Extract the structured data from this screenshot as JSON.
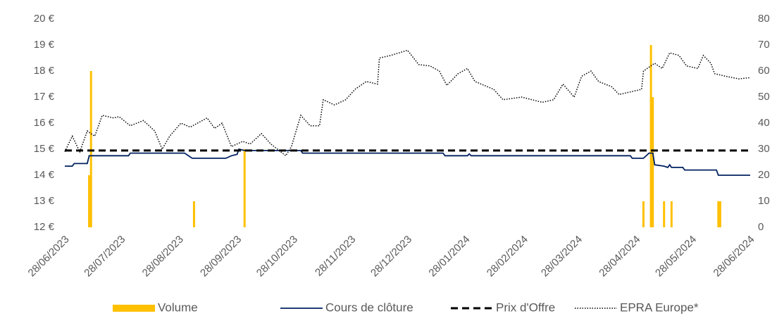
{
  "chart_data": {
    "type": "combo",
    "xlim": [
      "28/06/2023",
      "28/06/2024"
    ],
    "xticks": [
      "28/06/2023",
      "28/07/2023",
      "28/08/2023",
      "28/09/2023",
      "28/10/2023",
      "28/11/2023",
      "28/12/2023",
      "28/01/2024",
      "28/02/2024",
      "28/03/2024",
      "28/04/2024",
      "28/05/2024",
      "28/06/2024"
    ],
    "ylim": [
      12,
      20
    ],
    "yticks": [
      {
        "value": 12,
        "label": "12 €"
      },
      {
        "value": 13,
        "label": "13 €"
      },
      {
        "value": 14,
        "label": "14 €"
      },
      {
        "value": 15,
        "label": "15 €"
      },
      {
        "value": 16,
        "label": "16 €"
      },
      {
        "value": 17,
        "label": "17 €"
      },
      {
        "value": 18,
        "label": "18 €"
      },
      {
        "value": 19,
        "label": "19 €"
      },
      {
        "value": 20,
        "label": "20 €"
      }
    ],
    "y2lim": [
      0,
      80
    ],
    "y2ticks": [
      0,
      10,
      20,
      30,
      40,
      50,
      60,
      70,
      80
    ],
    "grid": false,
    "legend": "bottom",
    "series": [
      {
        "name": "Volume",
        "kind": "bar",
        "axis": "y2",
        "color": "#ffc000",
        "x": [
          "11/07/2023",
          "12/07/2023",
          "05/09/2023",
          "02/10/2023",
          "02/05/2024",
          "06/05/2024",
          "07/05/2024",
          "13/05/2024",
          "17/05/2024",
          "11/06/2024",
          "12/06/2024"
        ],
        "values": [
          20,
          60,
          10,
          30,
          10,
          70,
          50,
          10,
          10,
          10,
          10
        ]
      },
      {
        "name": "Cours de clôture",
        "kind": "line",
        "color": "#002060",
        "dash": "none",
        "x": [
          "28/06/2023",
          "02/07/2023",
          "03/07/2023",
          "10/07/2023",
          "11/07/2023",
          "01/08/2023",
          "02/08/2023",
          "31/08/2023",
          "04/09/2023",
          "22/09/2023",
          "25/09/2023",
          "28/09/2023",
          "29/09/2023",
          "02/10/2023",
          "01/11/2023",
          "02/11/2023",
          "16/01/2024",
          "17/01/2024",
          "29/01/2024",
          "30/01/2024",
          "31/01/2024",
          "25/04/2024",
          "26/04/2024",
          "02/05/2024",
          "05/05/2024",
          "07/05/2024",
          "08/05/2024",
          "13/05/2024",
          "15/05/2024",
          "16/05/2024",
          "17/05/2024",
          "23/05/2024",
          "24/05/2024",
          "10/06/2024",
          "11/06/2024",
          "28/06/2024"
        ],
        "values": [
          14.35,
          14.35,
          14.45,
          14.45,
          14.75,
          14.75,
          14.85,
          14.85,
          14.65,
          14.65,
          14.75,
          14.8,
          15.0,
          14.95,
          14.95,
          14.85,
          14.85,
          14.75,
          14.75,
          14.82,
          14.75,
          14.75,
          14.65,
          14.65,
          14.85,
          14.85,
          14.4,
          14.35,
          14.3,
          14.4,
          14.3,
          14.3,
          14.2,
          14.2,
          14.0,
          14.0
        ]
      },
      {
        "name": "Prix d'Offre",
        "kind": "line",
        "color": "#000000",
        "dash": "dashed",
        "x": [
          "28/06/2023",
          "28/06/2024"
        ],
        "values": [
          14.95,
          14.95
        ]
      },
      {
        "name": "EPRA Europe*",
        "kind": "line",
        "color": "#000000",
        "dash": "dotted",
        "x": [
          "28/06/2023",
          "02/07/2023",
          "06/07/2023",
          "10/07/2023",
          "14/07/2023",
          "18/07/2023",
          "24/07/2023",
          "27/07/2023",
          "02/08/2023",
          "09/08/2023",
          "15/08/2023",
          "19/08/2023",
          "23/08/2023",
          "29/08/2023",
          "03/09/2023",
          "12/09/2023",
          "16/09/2023",
          "20/09/2023",
          "25/09/2023",
          "01/10/2023",
          "05/10/2023",
          "11/10/2023",
          "16/10/2023",
          "24/10/2023",
          "27/10/2023",
          "01/11/2023",
          "06/11/2023",
          "11/11/2023",
          "13/11/2023",
          "19/11/2023",
          "25/11/2023",
          "30/11/2023",
          "06/12/2023",
          "12/12/2023",
          "13/12/2023",
          "19/12/2023",
          "28/12/2023",
          "03/01/2024",
          "09/01/2024",
          "14/01/2024",
          "18/01/2024",
          "24/01/2024",
          "29/01/2024",
          "02/02/2024",
          "12/02/2024",
          "17/02/2024",
          "27/02/2024",
          "09/03/2024",
          "15/03/2024",
          "20/03/2024",
          "26/03/2024",
          "30/03/2024",
          "04/04/2024",
          "08/04/2024",
          "15/04/2024",
          "19/04/2024",
          "25/04/2024",
          "01/05/2024",
          "02/05/2024",
          "08/05/2024",
          "12/05/2024",
          "16/05/2024",
          "21/05/2024",
          "25/05/2024",
          "31/05/2024",
          "03/06/2024",
          "07/06/2024",
          "09/06/2024",
          "15/06/2024",
          "22/06/2024",
          "28/06/2024"
        ],
        "values": [
          14.9,
          15.5,
          14.9,
          15.7,
          15.5,
          16.3,
          16.2,
          16.25,
          15.9,
          16.1,
          15.7,
          15.0,
          15.5,
          16.0,
          15.85,
          16.2,
          15.8,
          16.0,
          15.1,
          15.3,
          15.2,
          15.6,
          15.2,
          14.75,
          15.1,
          16.3,
          15.9,
          15.9,
          16.9,
          16.7,
          16.9,
          17.3,
          17.6,
          17.5,
          18.5,
          18.6,
          18.8,
          18.25,
          18.2,
          18.0,
          17.45,
          17.9,
          18.1,
          17.6,
          17.3,
          16.9,
          17.0,
          16.8,
          16.9,
          17.5,
          17.0,
          17.8,
          18.0,
          17.6,
          17.4,
          17.1,
          17.2,
          17.3,
          18.0,
          18.3,
          18.1,
          18.7,
          18.6,
          18.2,
          18.1,
          18.6,
          18.3,
          17.9,
          17.8,
          17.7,
          17.75
        ]
      }
    ]
  }
}
